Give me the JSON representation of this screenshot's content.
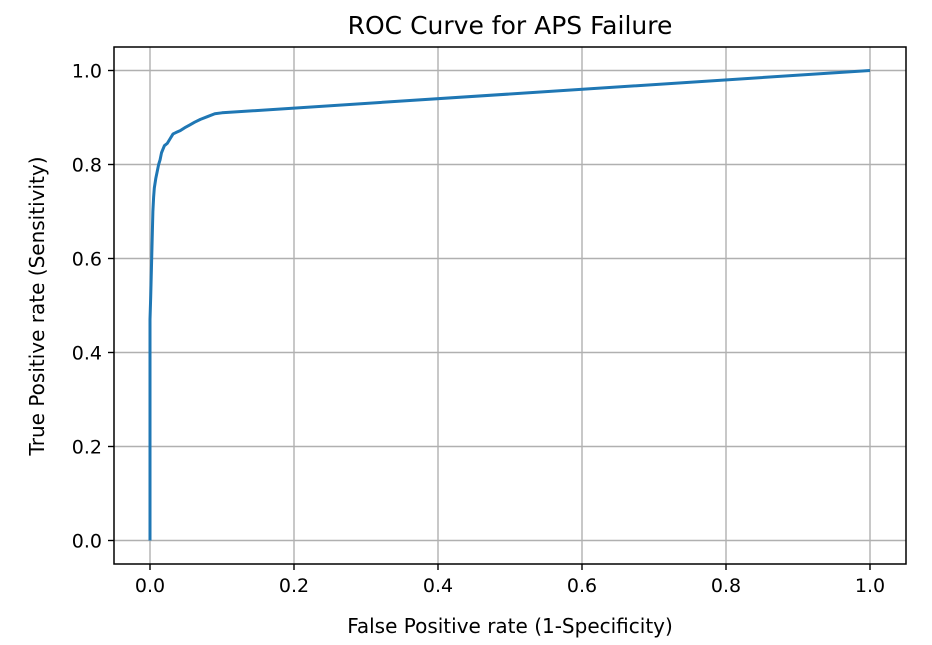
{
  "chart_data": {
    "type": "line",
    "title": "ROC Curve for APS Failure",
    "xlabel": "False Positive rate (1-Specificity)",
    "ylabel": "True Positive rate (Sensitivity)",
    "xlim": [
      -0.05,
      1.05
    ],
    "ylim": [
      -0.05,
      1.05
    ],
    "grid": true,
    "x_ticks": [
      "0.0",
      "0.2",
      "0.4",
      "0.6",
      "0.8",
      "1.0"
    ],
    "y_ticks": [
      "0.0",
      "0.2",
      "0.4",
      "0.6",
      "0.8",
      "1.0"
    ],
    "colors": {
      "line": "#1f77b4",
      "grid": "#b0b0b0",
      "frame": "#000000"
    },
    "series": [
      {
        "x": [
          0.0,
          0.0,
          0.001,
          0.002,
          0.003,
          0.004,
          0.005,
          0.006,
          0.008,
          0.01,
          0.012,
          0.014,
          0.016,
          0.02,
          0.024,
          0.028,
          0.032,
          0.036,
          0.042,
          0.048,
          0.055,
          0.062,
          0.07,
          0.08,
          0.09,
          0.1,
          1.0
        ],
        "y": [
          0.0,
          0.47,
          0.52,
          0.58,
          0.64,
          0.7,
          0.73,
          0.75,
          0.77,
          0.785,
          0.8,
          0.81,
          0.825,
          0.84,
          0.845,
          0.855,
          0.865,
          0.868,
          0.872,
          0.878,
          0.884,
          0.89,
          0.896,
          0.902,
          0.908,
          0.91,
          1.0
        ]
      }
    ]
  }
}
